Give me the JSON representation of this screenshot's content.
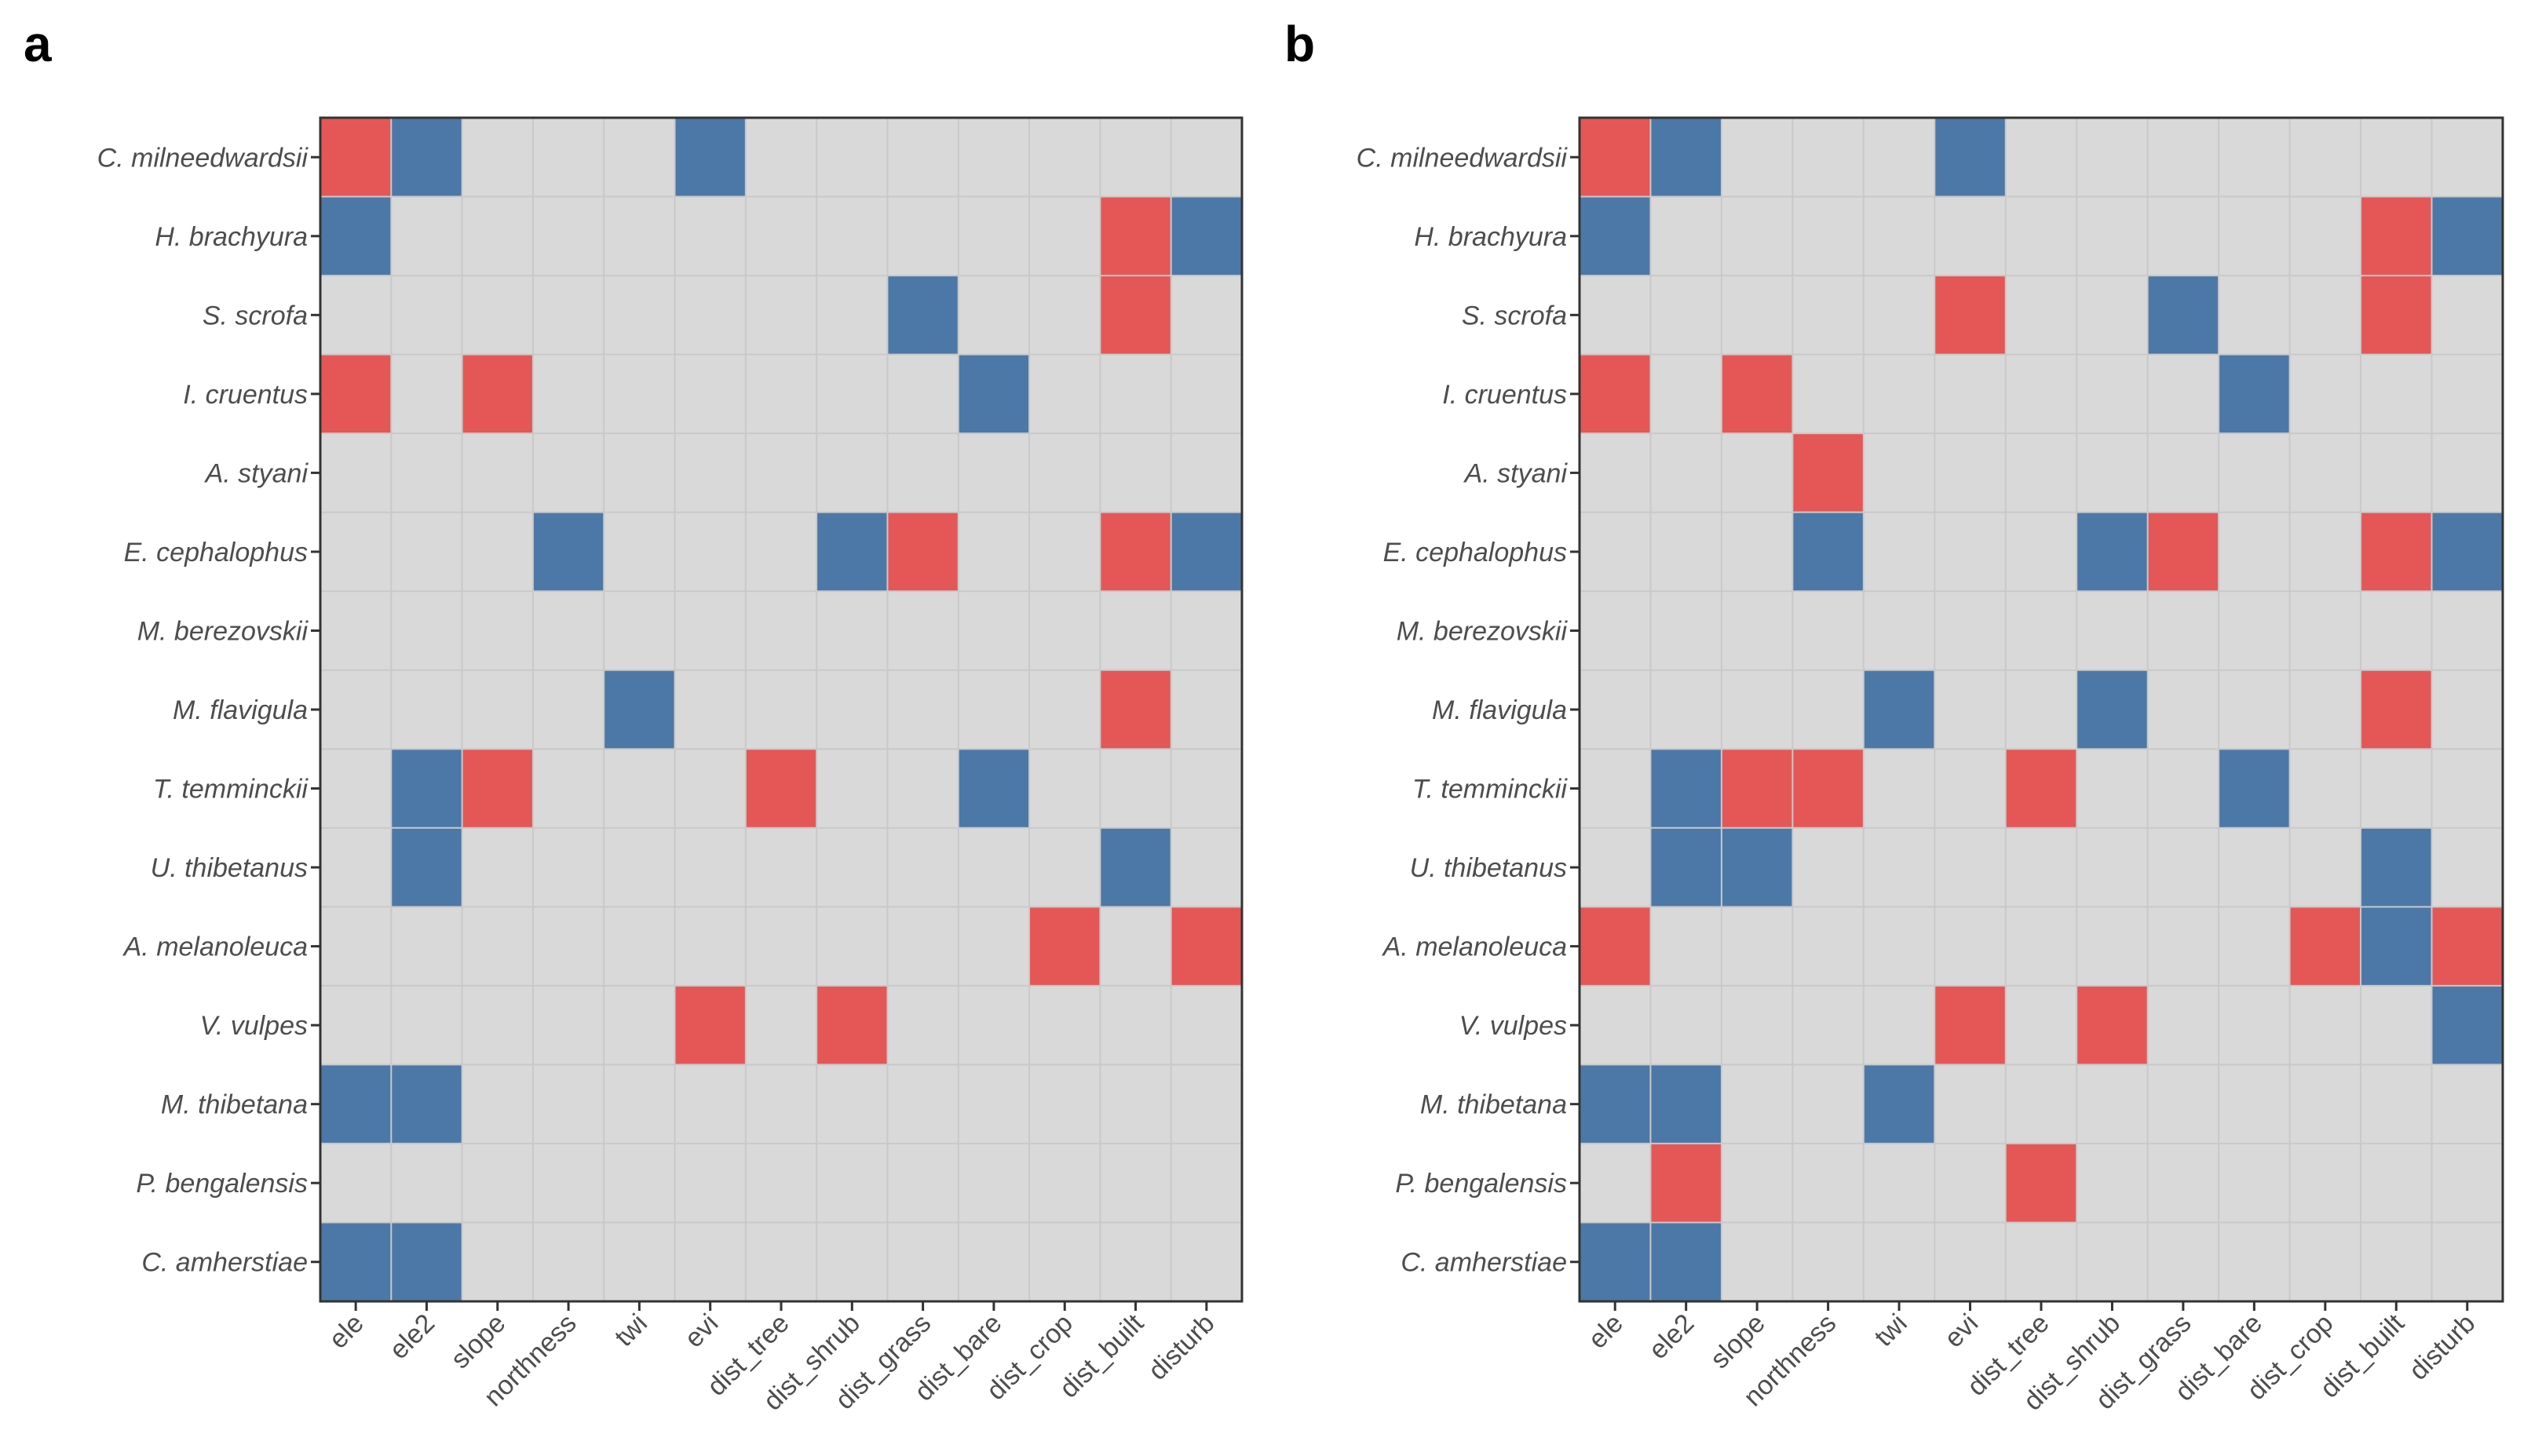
{
  "chart_data": [
    {
      "type": "heatmap",
      "panel_label": "a",
      "rows": [
        "C. milneedwardsii",
        "H. brachyura",
        "S. scrofa",
        "I. cruentus",
        "A. styani",
        "E. cephalophus",
        "M. berezovskii",
        "M. flavigula",
        "T. temminckii",
        "U. thibetanus",
        "A. melanoleuca",
        "V. vulpes",
        "M. thibetana",
        "P. bengalensis",
        "C. amherstiae"
      ],
      "columns": [
        "ele",
        "ele2",
        "slope",
        "northness",
        "twi",
        "evi",
        "dist_tree",
        "dist_shrub",
        "dist_grass",
        "dist_bare",
        "dist_crop",
        "dist_built",
        "disturb"
      ],
      "values": [
        [
          1,
          -1,
          0,
          0,
          0,
          -1,
          0,
          0,
          0,
          0,
          0,
          0,
          0
        ],
        [
          -1,
          0,
          0,
          0,
          0,
          0,
          0,
          0,
          0,
          0,
          0,
          1,
          -1
        ],
        [
          0,
          0,
          0,
          0,
          0,
          0,
          0,
          0,
          -1,
          0,
          0,
          1,
          0
        ],
        [
          1,
          0,
          1,
          0,
          0,
          0,
          0,
          0,
          0,
          -1,
          0,
          0,
          0
        ],
        [
          0,
          0,
          0,
          0,
          0,
          0,
          0,
          0,
          0,
          0,
          0,
          0,
          0
        ],
        [
          0,
          0,
          0,
          -1,
          0,
          0,
          0,
          -1,
          1,
          0,
          0,
          1,
          -1
        ],
        [
          0,
          0,
          0,
          0,
          0,
          0,
          0,
          0,
          0,
          0,
          0,
          0,
          0
        ],
        [
          0,
          0,
          0,
          0,
          -1,
          0,
          0,
          0,
          0,
          0,
          0,
          1,
          0
        ],
        [
          0,
          -1,
          1,
          0,
          0,
          0,
          1,
          0,
          0,
          -1,
          0,
          0,
          0
        ],
        [
          0,
          -1,
          0,
          0,
          0,
          0,
          0,
          0,
          0,
          0,
          0,
          -1,
          0
        ],
        [
          0,
          0,
          0,
          0,
          0,
          0,
          0,
          0,
          0,
          0,
          1,
          0,
          1
        ],
        [
          0,
          0,
          0,
          0,
          0,
          1,
          0,
          1,
          0,
          0,
          0,
          0,
          0
        ],
        [
          -1,
          -1,
          0,
          0,
          0,
          0,
          0,
          0,
          0,
          0,
          0,
          0,
          0
        ],
        [
          0,
          0,
          0,
          0,
          0,
          0,
          0,
          0,
          0,
          0,
          0,
          0,
          0
        ],
        [
          -1,
          -1,
          0,
          0,
          0,
          0,
          0,
          0,
          0,
          0,
          0,
          0,
          0
        ]
      ],
      "grid": true,
      "legend": "none"
    },
    {
      "type": "heatmap",
      "panel_label": "b",
      "rows": [
        "C. milneedwardsii",
        "H. brachyura",
        "S. scrofa",
        "I. cruentus",
        "A. styani",
        "E. cephalophus",
        "M. berezovskii",
        "M. flavigula",
        "T. temminckii",
        "U. thibetanus",
        "A. melanoleuca",
        "V. vulpes",
        "M. thibetana",
        "P. bengalensis",
        "C. amherstiae"
      ],
      "columns": [
        "ele",
        "ele2",
        "slope",
        "northness",
        "twi",
        "evi",
        "dist_tree",
        "dist_shrub",
        "dist_grass",
        "dist_bare",
        "dist_crop",
        "dist_built",
        "disturb"
      ],
      "values": [
        [
          1,
          -1,
          0,
          0,
          0,
          -1,
          0,
          0,
          0,
          0,
          0,
          0,
          0
        ],
        [
          -1,
          0,
          0,
          0,
          0,
          0,
          0,
          0,
          0,
          0,
          0,
          1,
          -1
        ],
        [
          0,
          0,
          0,
          0,
          0,
          1,
          0,
          0,
          -1,
          0,
          0,
          1,
          0
        ],
        [
          1,
          0,
          1,
          0,
          0,
          0,
          0,
          0,
          0,
          -1,
          0,
          0,
          0
        ],
        [
          0,
          0,
          0,
          1,
          0,
          0,
          0,
          0,
          0,
          0,
          0,
          0,
          0
        ],
        [
          0,
          0,
          0,
          -1,
          0,
          0,
          0,
          -1,
          1,
          0,
          0,
          1,
          -1
        ],
        [
          0,
          0,
          0,
          0,
          0,
          0,
          0,
          0,
          0,
          0,
          0,
          0,
          0
        ],
        [
          0,
          0,
          0,
          0,
          -1,
          0,
          0,
          -1,
          0,
          0,
          0,
          1,
          0
        ],
        [
          0,
          -1,
          1,
          1,
          0,
          0,
          1,
          0,
          0,
          -1,
          0,
          0,
          0
        ],
        [
          0,
          -1,
          -1,
          0,
          0,
          0,
          0,
          0,
          0,
          0,
          0,
          -1,
          0
        ],
        [
          1,
          0,
          0,
          0,
          0,
          0,
          0,
          0,
          0,
          0,
          1,
          -1,
          1
        ],
        [
          0,
          0,
          0,
          0,
          0,
          1,
          0,
          1,
          0,
          0,
          0,
          0,
          -1
        ],
        [
          -1,
          -1,
          0,
          0,
          -1,
          0,
          0,
          0,
          0,
          0,
          0,
          0,
          0
        ],
        [
          0,
          1,
          0,
          0,
          0,
          0,
          1,
          0,
          0,
          0,
          0,
          0,
          0
        ],
        [
          -1,
          -1,
          0,
          0,
          0,
          0,
          0,
          0,
          0,
          0,
          0,
          0,
          0
        ]
      ],
      "grid": true,
      "legend": "none"
    }
  ],
  "colors": {
    "positive": "#e45756",
    "negative": "#4c78a8",
    "neutral": "#d9d9d9"
  }
}
